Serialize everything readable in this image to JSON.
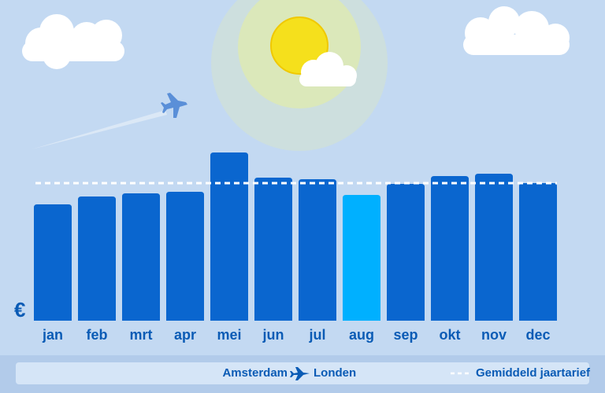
{
  "chart_data": {
    "type": "bar",
    "currency": "€",
    "categories": [
      "jan",
      "feb",
      "mrt",
      "apr",
      "mei",
      "jun",
      "jul",
      "aug",
      "sep",
      "okt",
      "nov",
      "dec"
    ],
    "values": [
      148,
      158,
      162,
      164,
      214,
      182,
      180,
      160,
      174,
      184,
      187,
      175
    ],
    "colors": [
      "#0a66cf",
      "#0a66cf",
      "#0a66cf",
      "#0a66cf",
      "#0a66cf",
      "#0a66cf",
      "#0a66cf",
      "#00b0ff",
      "#0a66cf",
      "#0a66cf",
      "#0a66cf",
      "#0a66cf"
    ],
    "average": {
      "value": 175,
      "label": "Gemiddeld jaartarief",
      "color": "#ffffff"
    },
    "route": {
      "from": "Amsterdam",
      "to": "Londen"
    }
  }
}
